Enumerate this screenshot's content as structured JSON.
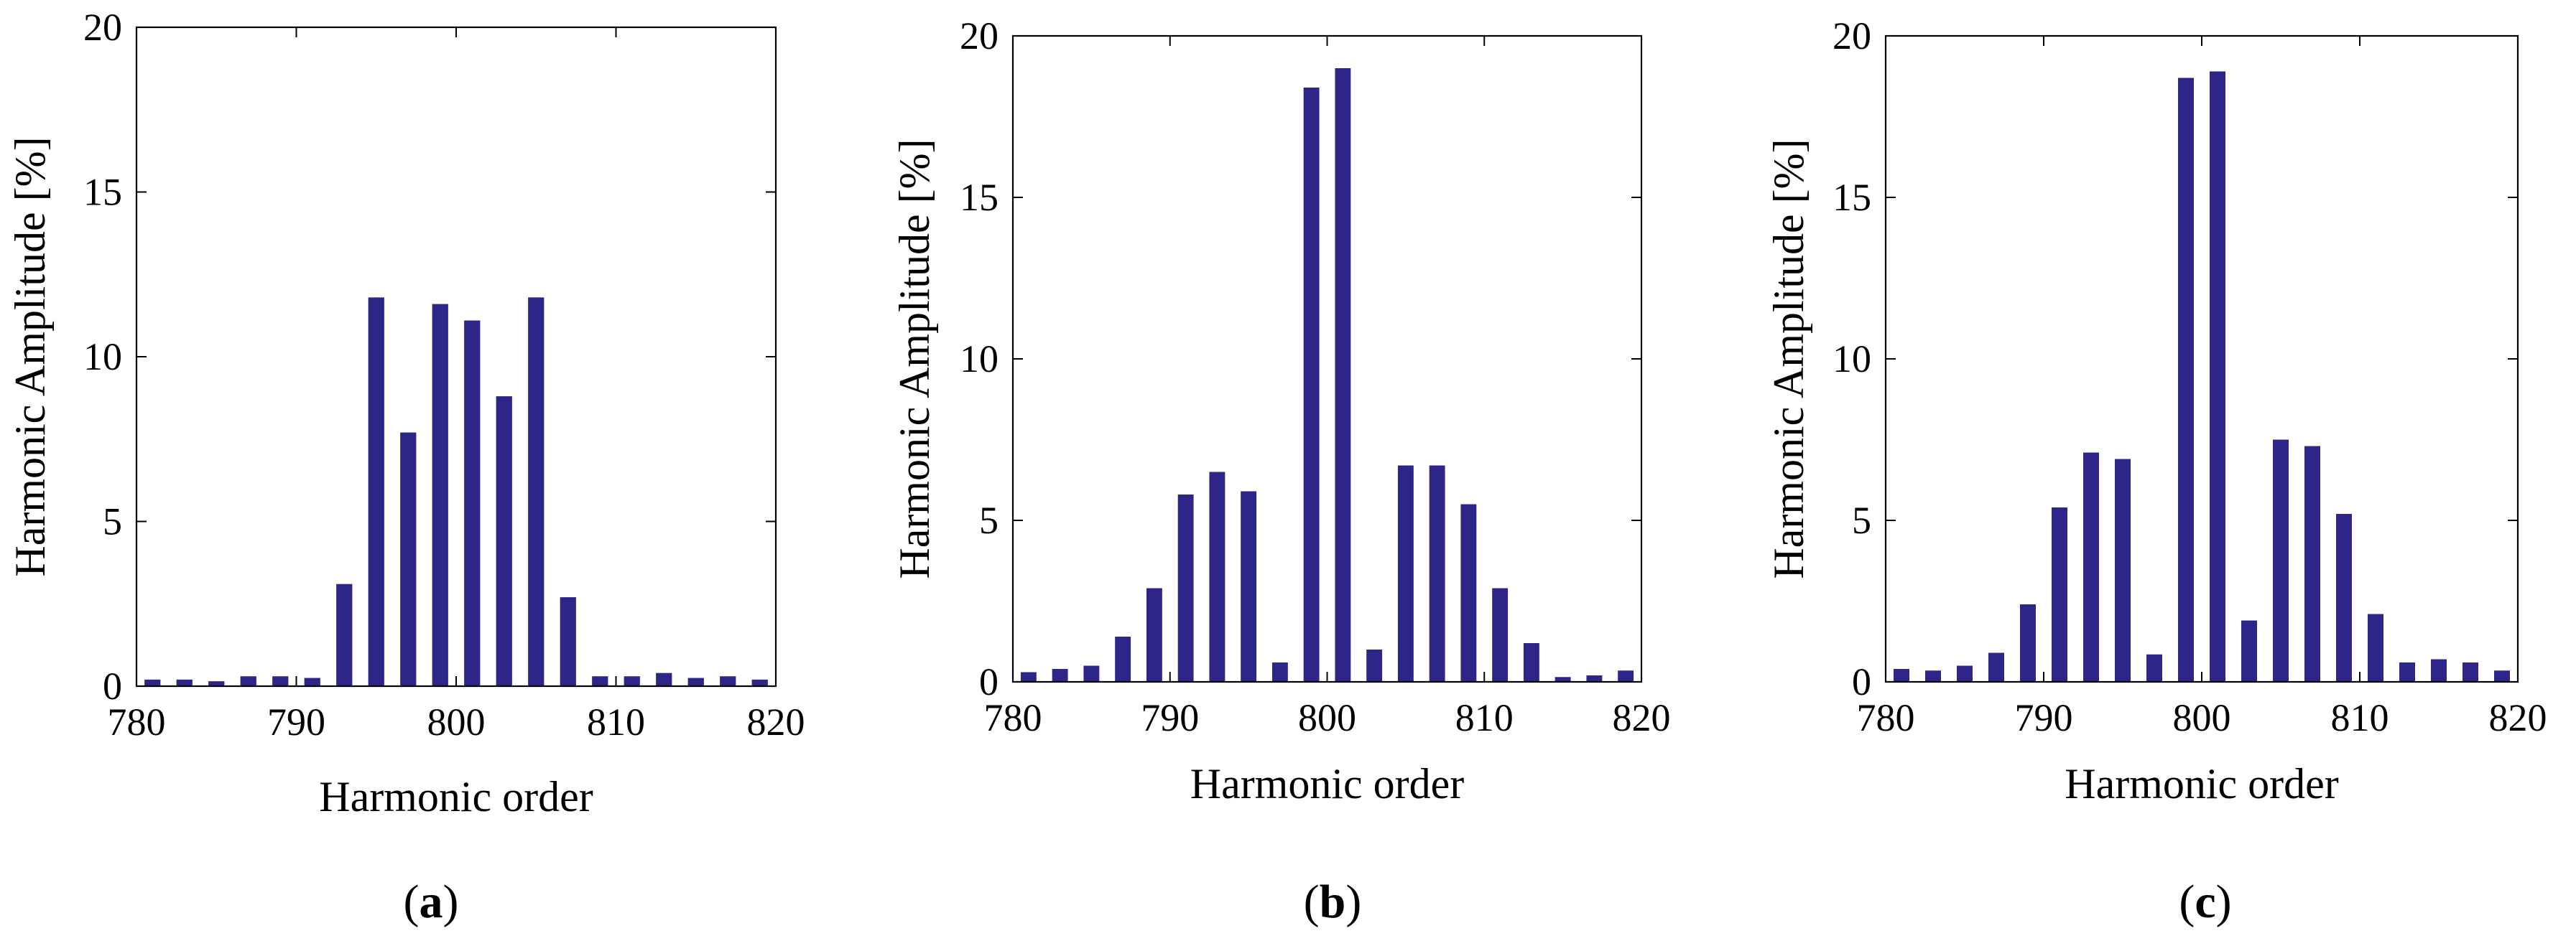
{
  "chart_data": [
    {
      "type": "bar",
      "panel": "(a)",
      "panel_letter": "a",
      "xlabel": "Harmonic order",
      "ylabel": "Harmonic Amplitude [%]",
      "xlim": [
        780,
        820
      ],
      "ylim": [
        0,
        20
      ],
      "xticks": [
        "780",
        "790",
        "800",
        "810",
        "820"
      ],
      "yticks": [
        "0",
        "5",
        "10",
        "15",
        "20"
      ],
      "bar_color": "#2e2589",
      "x": [
        781,
        783,
        785,
        787,
        789,
        791,
        793,
        795,
        797,
        799,
        801,
        803,
        805,
        807,
        809,
        811,
        813,
        815,
        817,
        819
      ],
      "values": [
        0.2,
        0.2,
        0.15,
        0.3,
        0.3,
        0.25,
        3.1,
        11.8,
        7.7,
        11.6,
        11.1,
        8.8,
        11.8,
        2.7,
        0.3,
        0.3,
        0.4,
        0.25,
        0.3,
        0.2
      ]
    },
    {
      "type": "bar",
      "panel": "(b)",
      "panel_letter": "b",
      "xlabel": "Harmonic order",
      "ylabel": "Harmonic Amplitude [%]",
      "xlim": [
        780,
        820
      ],
      "ylim": [
        0,
        20
      ],
      "xticks": [
        "780",
        "790",
        "800",
        "810",
        "820"
      ],
      "yticks": [
        "0",
        "5",
        "10",
        "15",
        "20"
      ],
      "bar_color": "#2e2589",
      "x": [
        781,
        783,
        785,
        787,
        789,
        791,
        793,
        795,
        797,
        799,
        801,
        803,
        805,
        807,
        809,
        811,
        813,
        815,
        817,
        819
      ],
      "values": [
        0.3,
        0.4,
        0.5,
        1.4,
        2.9,
        5.8,
        6.5,
        5.9,
        0.6,
        18.4,
        19.0,
        1.0,
        6.7,
        6.7,
        5.5,
        2.9,
        1.2,
        0.15,
        0.2,
        0.35
      ]
    },
    {
      "type": "bar",
      "panel": "(c)",
      "panel_letter": "c",
      "xlabel": "Harmonic order",
      "ylabel": "Harmonic Amplitude [%]",
      "xlim": [
        780,
        820
      ],
      "ylim": [
        0,
        20
      ],
      "xticks": [
        "780",
        "790",
        "800",
        "810",
        "820"
      ],
      "yticks": [
        "0",
        "5",
        "10",
        "15",
        "20"
      ],
      "bar_color": "#2e2589",
      "x": [
        781,
        783,
        785,
        787,
        789,
        791,
        793,
        795,
        797,
        799,
        801,
        803,
        805,
        807,
        809,
        811,
        813,
        815,
        817,
        819
      ],
      "values": [
        0.4,
        0.35,
        0.5,
        0.9,
        2.4,
        5.4,
        7.1,
        6.9,
        0.85,
        18.7,
        18.9,
        1.9,
        7.5,
        7.3,
        5.2,
        2.1,
        0.6,
        0.7,
        0.6,
        0.35
      ]
    }
  ]
}
